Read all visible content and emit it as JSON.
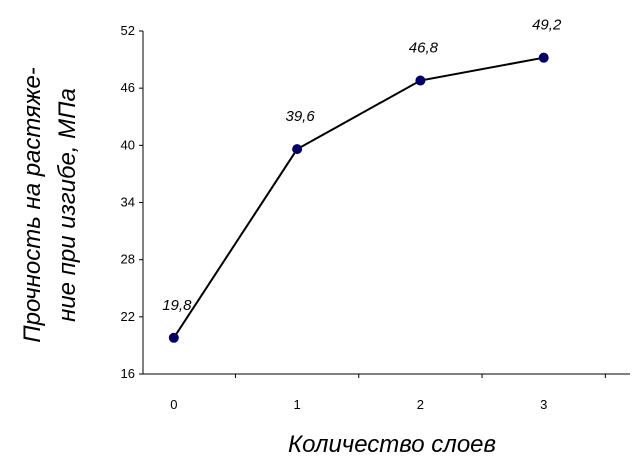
{
  "chart_data": {
    "type": "line",
    "x": [
      0,
      1,
      2,
      3
    ],
    "categories": [
      "0",
      "1",
      "2",
      "3"
    ],
    "values": [
      19.8,
      39.6,
      46.8,
      49.2
    ],
    "data_labels": [
      "19,8",
      "39,6",
      "46,8",
      "49,2"
    ],
    "xlabel": "Количество слоев",
    "ylabel_lines": [
      "Прочность на растяже-",
      "ние при изгибе, МПа"
    ],
    "ylim": [
      16,
      52
    ],
    "yticks": [
      16,
      22,
      28,
      34,
      40,
      46,
      52
    ],
    "ytick_labels": [
      "16",
      "22",
      "28",
      "34",
      "40",
      "46",
      "52"
    ],
    "grid": false,
    "line_color": "#000000",
    "marker_color": "#000066"
  }
}
